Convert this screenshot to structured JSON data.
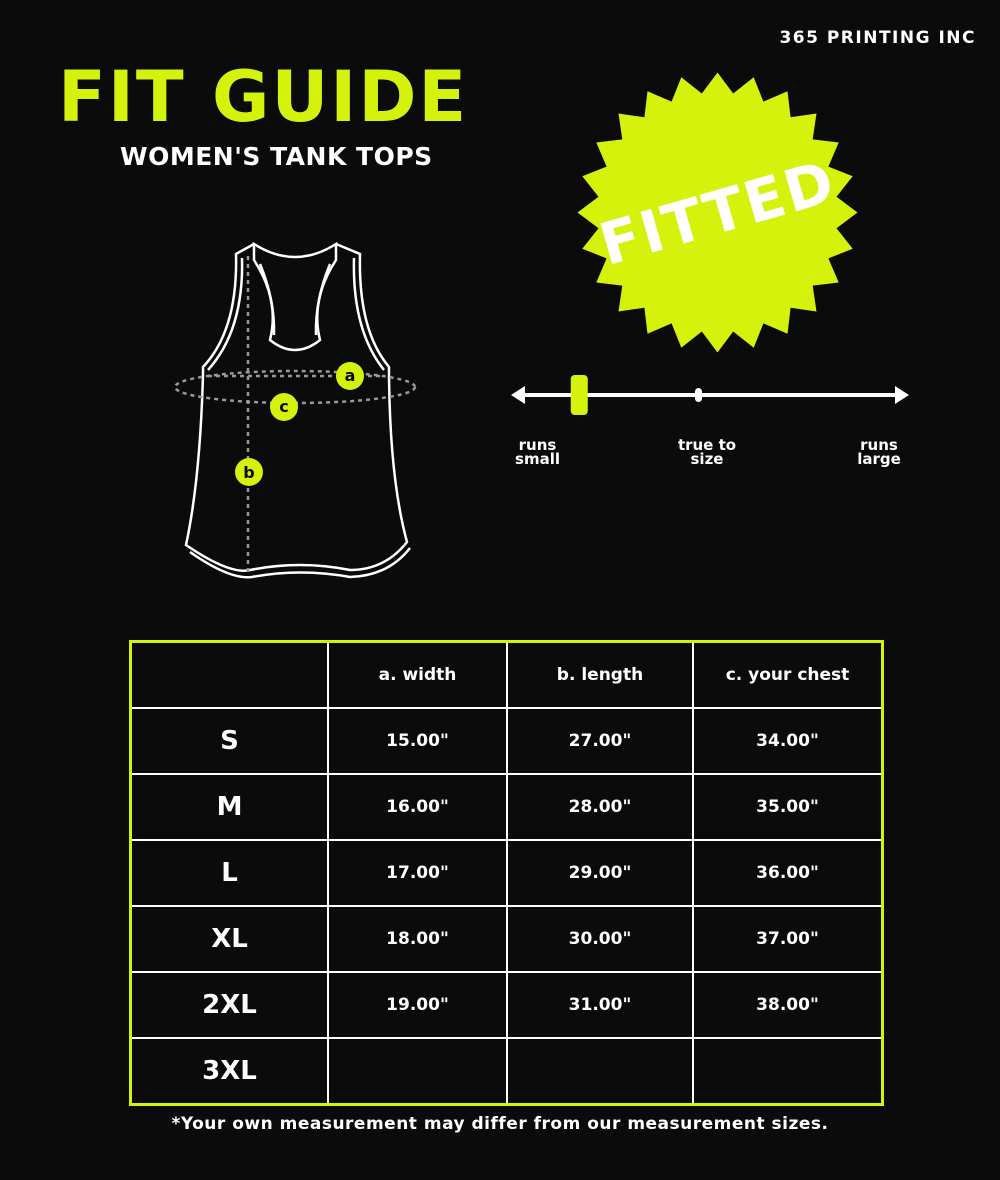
{
  "company": "365 PRINTING INC",
  "title": "FIT GUIDE",
  "subtitle": "WOMEN'S TANK TOPS",
  "badge": "FITTED",
  "colors": {
    "accent": "#d4f20c",
    "background": "#0b0b0b",
    "line": "#ffffff"
  },
  "diagram": {
    "labels": {
      "a": "a",
      "b": "b",
      "c": "c"
    }
  },
  "fit_scale": {
    "left": "runs small",
    "center": "true to size",
    "right": "runs large",
    "position_fraction": 0.16
  },
  "table": {
    "headers": [
      "",
      "a. width",
      "b. length",
      "c. your chest"
    ],
    "rows": [
      {
        "size": "S",
        "width": "15.00\"",
        "length": "27.00\"",
        "chest": "34.00\""
      },
      {
        "size": "M",
        "width": "16.00\"",
        "length": "28.00\"",
        "chest": "35.00\""
      },
      {
        "size": "L",
        "width": "17.00\"",
        "length": "29.00\"",
        "chest": "36.00\""
      },
      {
        "size": "XL",
        "width": "18.00\"",
        "length": "30.00\"",
        "chest": "37.00\""
      },
      {
        "size": "2XL",
        "width": "19.00\"",
        "length": "31.00\"",
        "chest": "38.00\""
      },
      {
        "size": "3XL",
        "width": "",
        "length": "",
        "chest": ""
      }
    ]
  },
  "note": "*Your own measurement may differ from our measurement sizes."
}
